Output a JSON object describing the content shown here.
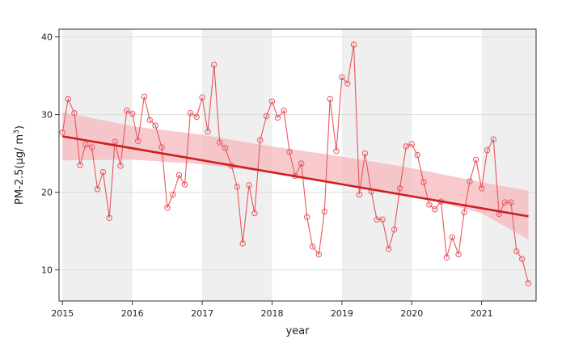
{
  "chart_data": {
    "type": "line",
    "xlabel": "year",
    "ylabel_main": "PM-2.5(µg/ m",
    "ylabel_sup": "3",
    "ylabel_close": ")",
    "xlim": [
      2014.95,
      2021.78
    ],
    "ylim": [
      6,
      41
    ],
    "x_ticks": [
      2015,
      2016,
      2017,
      2018,
      2019,
      2020,
      2021
    ],
    "x_tick_labels": [
      "2015",
      "2016",
      "2017",
      "2018",
      "2019",
      "2020",
      "2021"
    ],
    "y_ticks": [
      10,
      20,
      30,
      40
    ],
    "y_tick_labels": [
      "10",
      "20",
      "30",
      "40"
    ],
    "grid": true,
    "shaded_year_bands": [
      [
        2015,
        2016
      ],
      [
        2017,
        2018
      ],
      [
        2019,
        2020
      ],
      [
        2021,
        2021.78
      ]
    ],
    "colors": {
      "series": "#e8565c",
      "trend": "#cc1f1f",
      "band": "#f5b8bd",
      "panel_shade": "#efefef"
    },
    "series": [
      {
        "x": [
          2015.0,
          2015.08,
          2015.17,
          2015.25,
          2015.33,
          2015.42,
          2015.5,
          2015.58,
          2015.67,
          2015.75,
          2015.83,
          2015.92,
          2016.0,
          2016.08,
          2016.17,
          2016.25,
          2016.33,
          2016.42,
          2016.5,
          2016.58,
          2016.67,
          2016.75,
          2016.83,
          2016.92,
          2017.0,
          2017.08,
          2017.17,
          2017.25,
          2017.33,
          2017.42,
          2017.5,
          2017.58,
          2017.67,
          2017.75,
          2017.83,
          2017.92,
          2018.0,
          2018.08,
          2018.17,
          2018.25,
          2018.33,
          2018.42,
          2018.5,
          2018.58,
          2018.67,
          2018.75,
          2018.83,
          2018.92,
          2019.0,
          2019.08,
          2019.17,
          2019.25,
          2019.33,
          2019.42,
          2019.5,
          2019.58,
          2019.67,
          2019.75,
          2019.83,
          2019.92,
          2020.0,
          2020.08,
          2020.17,
          2020.25,
          2020.33,
          2020.42,
          2020.5,
          2020.58,
          2020.67,
          2020.75,
          2020.83,
          2020.92,
          2021.0,
          2021.08,
          2021.17,
          2021.25,
          2021.33,
          2021.42,
          2021.5,
          2021.58,
          2021.67
        ],
        "y": [
          27.7,
          32.0,
          30.2,
          23.5,
          26.1,
          25.8,
          20.4,
          22.6,
          16.7,
          26.5,
          23.4,
          30.5,
          30.1,
          26.6,
          32.3,
          29.3,
          28.6,
          25.8,
          18.0,
          19.7,
          22.2,
          21.0,
          30.2,
          29.7,
          32.2,
          27.8,
          36.4,
          26.4,
          25.7,
          23.4,
          20.7,
          13.4,
          20.9,
          17.3,
          26.7,
          29.8,
          31.7,
          29.6,
          30.5,
          25.2,
          22.1,
          23.7,
          16.8,
          13.0,
          12.0,
          17.5,
          32.0,
          25.3,
          34.8,
          34.0,
          39.0,
          19.7,
          25.0,
          20.1,
          16.5,
          16.5,
          12.7,
          15.2,
          20.5,
          25.9,
          26.2,
          24.8,
          21.3,
          18.4,
          17.8,
          18.8,
          11.6,
          14.2,
          12.0,
          17.4,
          21.4,
          24.2,
          20.5,
          25.4,
          26.8,
          17.2,
          18.7,
          18.7,
          12.4,
          11.4,
          8.3
        ]
      }
    ],
    "trend_line": {
      "x": [
        2015.0,
        2021.67
      ],
      "y": [
        27.2,
        16.9
      ]
    },
    "confidence_band": {
      "x": [
        2015.0,
        2016.0,
        2017.0,
        2018.0,
        2019.0,
        2020.0,
        2021.0,
        2021.67
      ],
      "lower": [
        24.1,
        24.2,
        23.6,
        22.5,
        21.2,
        19.6,
        17.3,
        13.9
      ],
      "upper": [
        30.3,
        28.5,
        27.4,
        25.9,
        24.6,
        23.1,
        21.3,
        20.2
      ]
    }
  }
}
